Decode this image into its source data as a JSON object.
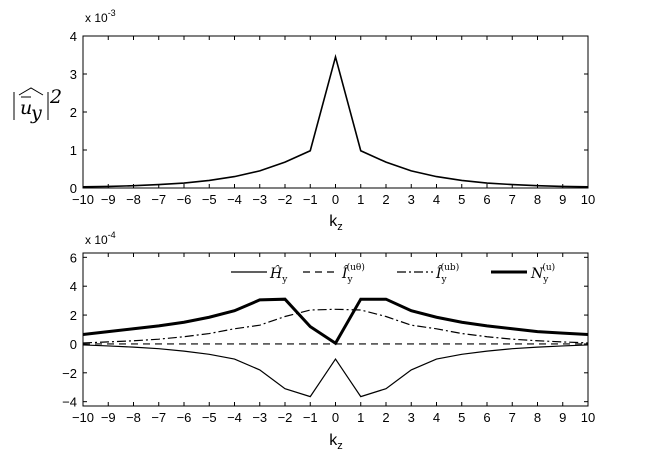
{
  "chart_data": [
    {
      "type": "line",
      "x": [
        -10,
        -9,
        -8,
        -7,
        -6,
        -5,
        -4,
        -3,
        -2,
        -1,
        0,
        1,
        2,
        3,
        4,
        5,
        6,
        7,
        8,
        9,
        10
      ],
      "xlabel": "k",
      "xlabel_sub": "z",
      "ylabel": "|û_y|²",
      "xlim": [
        -10,
        10
      ],
      "ylim": [
        0,
        4
      ],
      "yticks": [
        0,
        1,
        2,
        3,
        4
      ],
      "xticks": [
        -10,
        -9,
        -8,
        -7,
        -6,
        -5,
        -4,
        -3,
        -2,
        -1,
        0,
        1,
        2,
        3,
        4,
        5,
        6,
        7,
        8,
        9,
        10
      ],
      "multiplier_base": "x 10",
      "multiplier_exp": "-3",
      "grid": false,
      "series": [
        {
          "values": [
            0.03,
            0.04,
            0.06,
            0.09,
            0.13,
            0.2,
            0.3,
            0.45,
            0.68,
            0.98,
            3.45,
            0.98,
            0.68,
            0.45,
            0.3,
            0.2,
            0.13,
            0.09,
            0.06,
            0.04,
            0.03
          ],
          "color": "#000000",
          "width": 1.6,
          "dash": ""
        }
      ]
    },
    {
      "type": "line",
      "x": [
        -10,
        -9,
        -8,
        -7,
        -6,
        -5,
        -4,
        -3,
        -2,
        -1,
        0,
        1,
        2,
        3,
        4,
        5,
        6,
        7,
        8,
        9,
        10
      ],
      "xlabel": "k",
      "xlabel_sub": "z",
      "xlim": [
        -10,
        10
      ],
      "ylim": [
        -4.3,
        6.3
      ],
      "yticks": [
        -4,
        -2,
        0,
        2,
        4,
        6
      ],
      "xticks": [
        -10,
        -9,
        -8,
        -7,
        -6,
        -5,
        -4,
        -3,
        -2,
        -1,
        0,
        1,
        2,
        3,
        4,
        5,
        6,
        7,
        8,
        9,
        10
      ],
      "multiplier_base": "x 10",
      "multiplier_exp": "-4",
      "grid": false,
      "legend_position": "top-right",
      "series": [
        {
          "name": "Ĥ",
          "name_sub": "y",
          "name_sup": "",
          "values": [
            -0.07,
            -0.14,
            -0.22,
            -0.33,
            -0.5,
            -0.72,
            -1.05,
            -1.8,
            -3.1,
            -3.65,
            -1.05,
            -3.65,
            -3.1,
            -1.8,
            -1.05,
            -0.72,
            -0.5,
            -0.33,
            -0.22,
            -0.14,
            -0.07
          ],
          "color": "#000000",
          "width": 1.2,
          "dash": ""
        },
        {
          "name": "Î",
          "name_sub": "y",
          "name_sup": "(uθ)",
          "values": [
            0,
            0,
            0,
            0,
            0,
            0,
            0,
            0,
            0,
            0,
            0,
            0,
            0,
            0,
            0,
            0,
            0,
            0,
            0,
            0,
            0
          ],
          "color": "#000000",
          "width": 1.2,
          "dash": "7,5"
        },
        {
          "name": "Î",
          "name_sub": "y",
          "name_sup": "(ub)",
          "values": [
            0.07,
            0.14,
            0.22,
            0.33,
            0.5,
            0.72,
            1.05,
            1.3,
            1.9,
            2.35,
            2.4,
            2.35,
            1.9,
            1.3,
            1.05,
            0.72,
            0.5,
            0.33,
            0.22,
            0.14,
            0.07
          ],
          "color": "#000000",
          "width": 1.2,
          "dash": "9,3,2,3"
        },
        {
          "name": "N",
          "name_sub": "y",
          "name_sup": "(u)",
          "values": [
            0.65,
            0.85,
            1.05,
            1.25,
            1.5,
            1.85,
            2.3,
            3.05,
            3.1,
            1.2,
            0.05,
            3.1,
            3.1,
            2.3,
            1.85,
            1.5,
            1.25,
            1.05,
            0.85,
            0.75,
            0.65
          ],
          "color": "#000000",
          "width": 3,
          "dash": ""
        }
      ]
    }
  ]
}
